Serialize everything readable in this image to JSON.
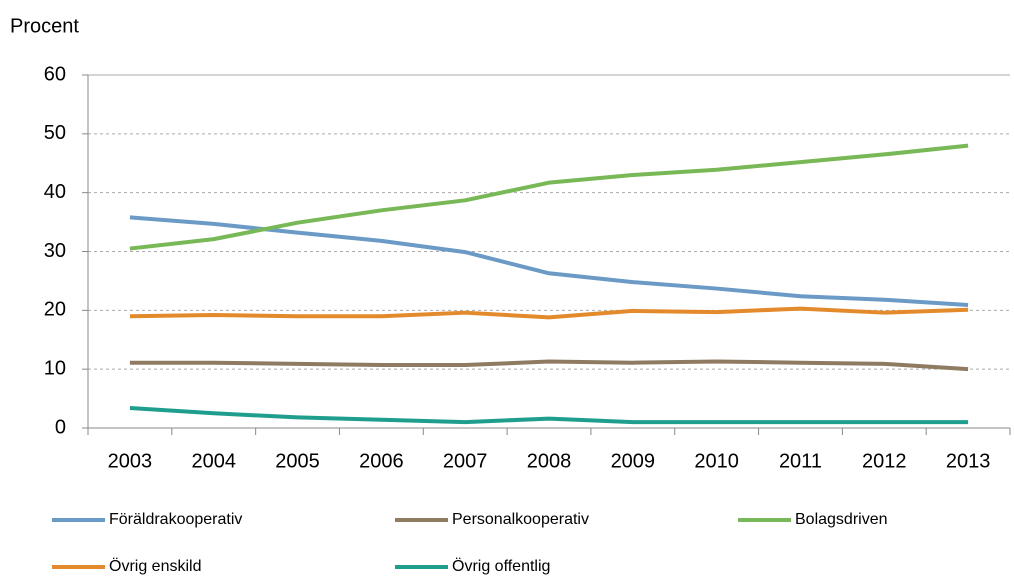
{
  "chart_data": {
    "type": "line",
    "y_label": "Procent",
    "categories": [
      "2003",
      "2004",
      "2005",
      "2006",
      "2007",
      "2008",
      "2009",
      "2010",
      "2011",
      "2012",
      "2013"
    ],
    "series": [
      {
        "name": "Föräldrakooperativ",
        "color": "#6b9ac6",
        "values": [
          35.8,
          34.7,
          33.2,
          31.8,
          29.9,
          26.3,
          24.8,
          23.7,
          22.4,
          21.8,
          20.9
        ]
      },
      {
        "name": "Personalkooperativ",
        "color": "#8f7a62",
        "values": [
          11.1,
          11.1,
          10.9,
          10.7,
          10.7,
          11.3,
          11.1,
          11.3,
          11.1,
          10.9,
          10.0
        ]
      },
      {
        "name": "Bolagsdriven",
        "color": "#78b856",
        "values": [
          30.5,
          32.1,
          34.9,
          37.0,
          38.7,
          41.7,
          43.0,
          43.9,
          45.2,
          46.5,
          48.0
        ]
      },
      {
        "name": "Övrig enskild",
        "color": "#e38a2c",
        "values": [
          19.0,
          19.2,
          19.0,
          19.0,
          19.6,
          18.8,
          19.9,
          19.7,
          20.3,
          19.6,
          20.1
        ]
      },
      {
        "name": "Övrig offentlig",
        "color": "#1f9e8e",
        "values": [
          3.4,
          2.5,
          1.8,
          1.4,
          1.0,
          1.6,
          1.0,
          1.0,
          1.0,
          1.0,
          1.0
        ]
      }
    ],
    "ylim": [
      0,
      60
    ],
    "yticks": [
      0,
      10,
      20,
      30,
      40,
      50,
      60
    ],
    "grid": true,
    "legend": "bottom"
  }
}
